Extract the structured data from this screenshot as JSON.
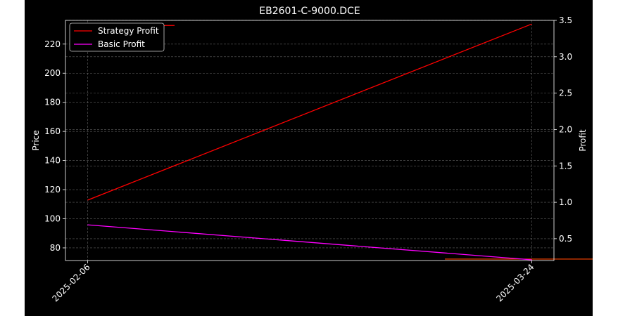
{
  "chart_data": {
    "type": "line",
    "title": "EB2601-C-9000.DCE",
    "xlabel": "",
    "ylabel": "Price",
    "y2label": "Profit",
    "x": [
      "2025-02-06",
      "2025-03-24"
    ],
    "ylim": [
      71.3,
      236.3
    ],
    "y2lim": [
      0.2,
      3.5
    ],
    "yticks": [
      80,
      100,
      120,
      140,
      160,
      180,
      200,
      220
    ],
    "y2ticks": [
      0.5,
      1.0,
      1.5,
      2.0,
      2.5,
      3.0,
      3.5
    ],
    "grid": true,
    "legend_position": "top-left",
    "series": [
      {
        "name": "Strategy Profit",
        "axis": "right",
        "color": "#ff0000",
        "values": [
          1.03,
          3.45
        ]
      },
      {
        "name": "Basic Profit",
        "axis": "right",
        "color": "#ff00ff",
        "values": [
          0.69,
          0.21
        ]
      }
    ],
    "reference_levels": [
      {
        "axis": "right",
        "value": 3.43,
        "color": "#ff0000",
        "x_start": "2025-02-06",
        "x_end": "2025-02-15"
      },
      {
        "axis": "right",
        "value": 0.22,
        "color": "#ff4500",
        "x_start": "2025-03-15",
        "x_end": "2025-04-02"
      }
    ]
  },
  "colors": {
    "background": "#000000",
    "foreground": "#ffffff",
    "grid": "#808080"
  }
}
